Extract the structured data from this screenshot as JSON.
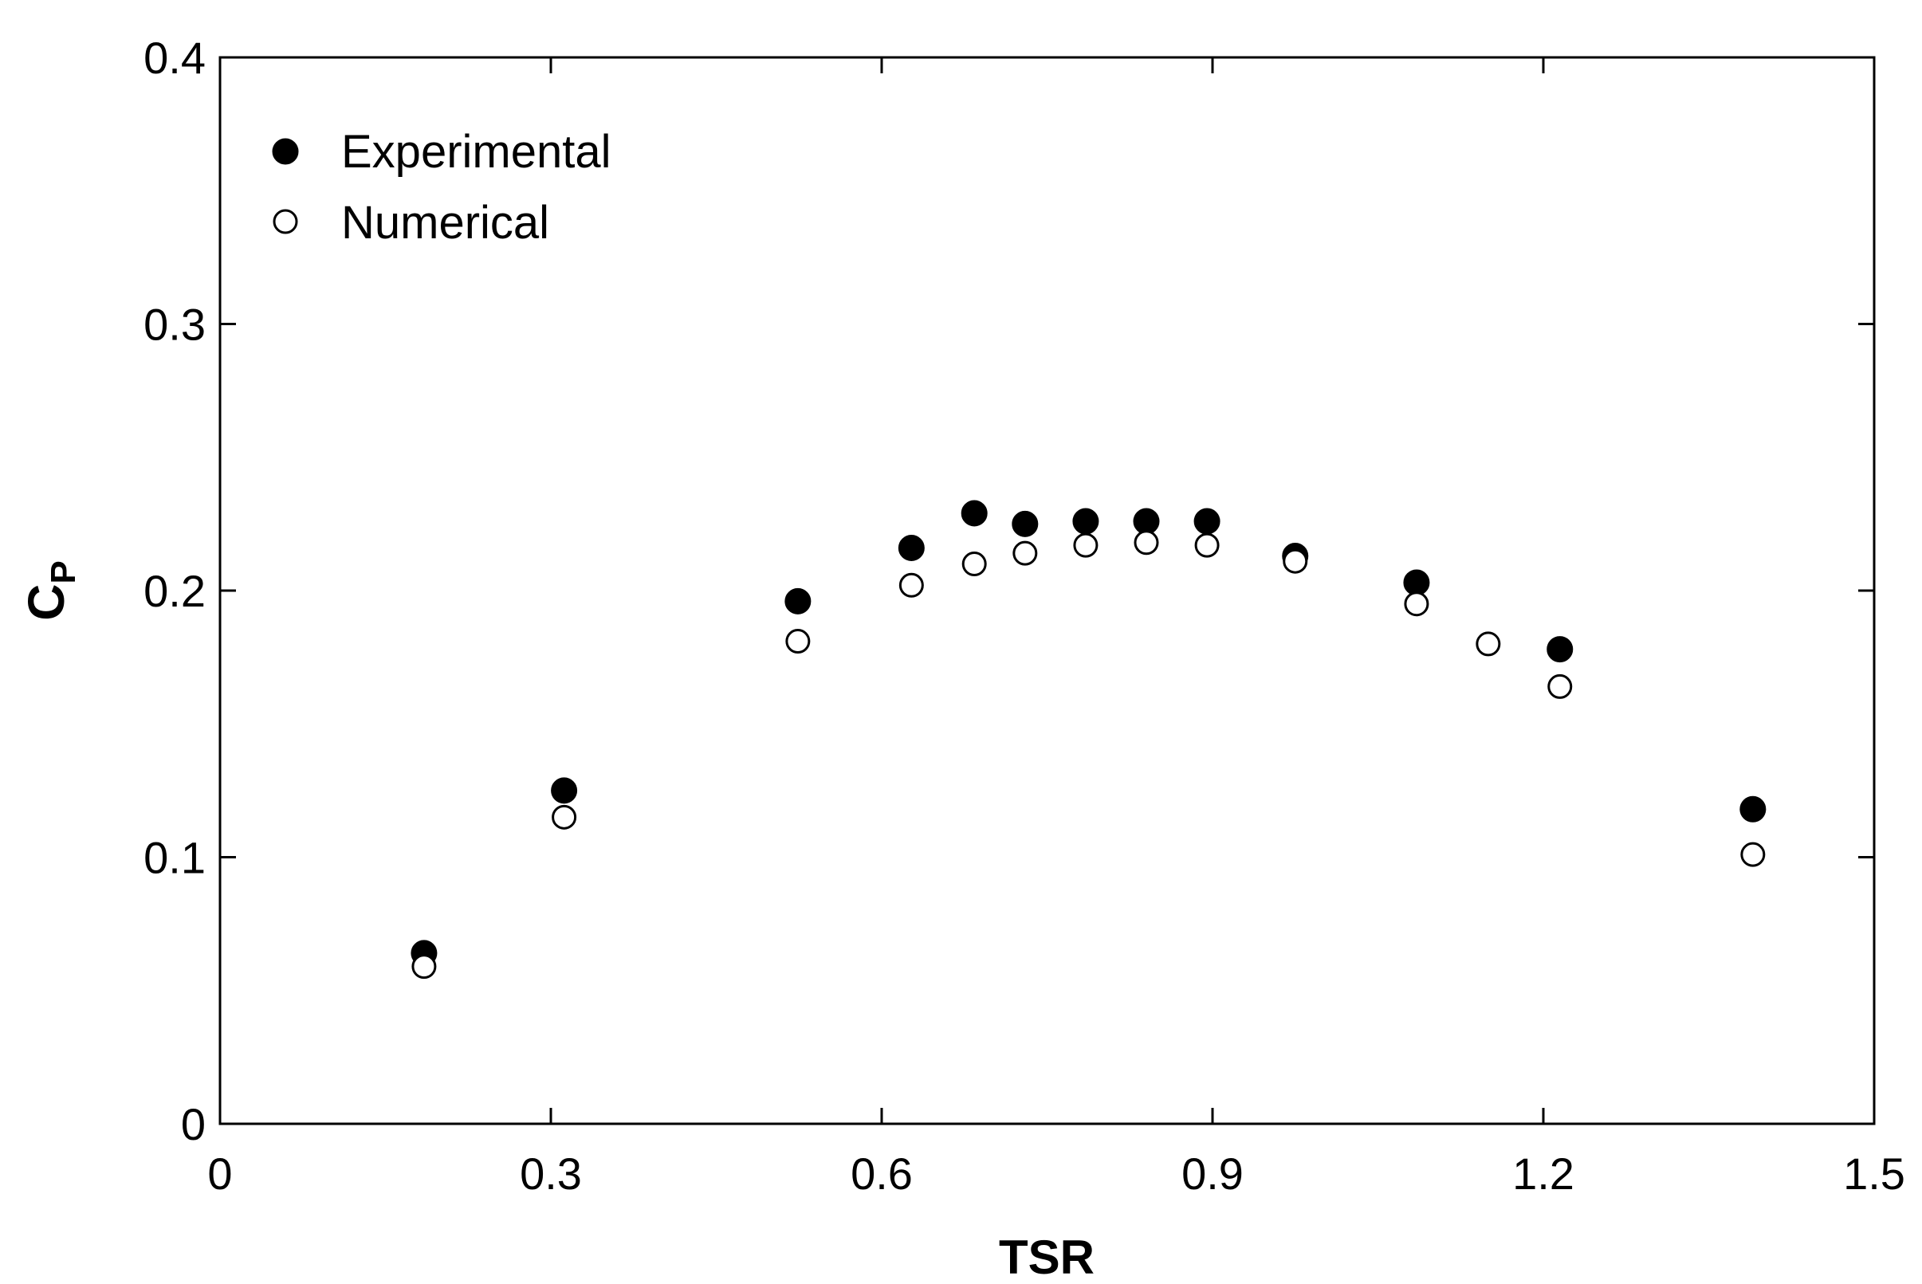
{
  "chart_data": {
    "type": "scatter",
    "xlabel": "TSR",
    "ylabel": {
      "main": "C",
      "sub": "P"
    },
    "xlim": [
      0,
      1.5
    ],
    "ylim": [
      0,
      0.4
    ],
    "xticks": [
      0,
      0.3,
      0.6,
      0.9,
      1.2,
      1.5
    ],
    "xtick_labels": [
      "0",
      "0.3",
      "0.6",
      "0.9",
      "1.2",
      "1.5"
    ],
    "yticks": [
      0,
      0.1,
      0.2,
      0.3,
      0.4
    ],
    "ytick_labels": [
      "0",
      "0.1",
      "0.2",
      "0.3",
      "0.4"
    ],
    "grid": false,
    "legend_position": "top-left",
    "series": [
      {
        "name": "Experimental",
        "marker": "filled-circle",
        "color": "#000000",
        "x": [
          0.185,
          0.312,
          0.524,
          0.627,
          0.684,
          0.73,
          0.785,
          0.84,
          0.895,
          0.975,
          1.085,
          1.215,
          1.39
        ],
        "y": [
          0.064,
          0.125,
          0.196,
          0.216,
          0.229,
          0.225,
          0.226,
          0.226,
          0.226,
          0.213,
          0.203,
          0.178,
          0.118
        ]
      },
      {
        "name": "Numerical",
        "marker": "open-circle",
        "color": "#000000",
        "x": [
          0.185,
          0.312,
          0.524,
          0.627,
          0.684,
          0.73,
          0.785,
          0.84,
          0.895,
          0.975,
          1.085,
          1.15,
          1.215,
          1.39
        ],
        "y": [
          0.059,
          0.115,
          0.181,
          0.202,
          0.21,
          0.214,
          0.217,
          0.218,
          0.217,
          0.211,
          0.195,
          0.18,
          0.164,
          0.101
        ]
      }
    ]
  }
}
